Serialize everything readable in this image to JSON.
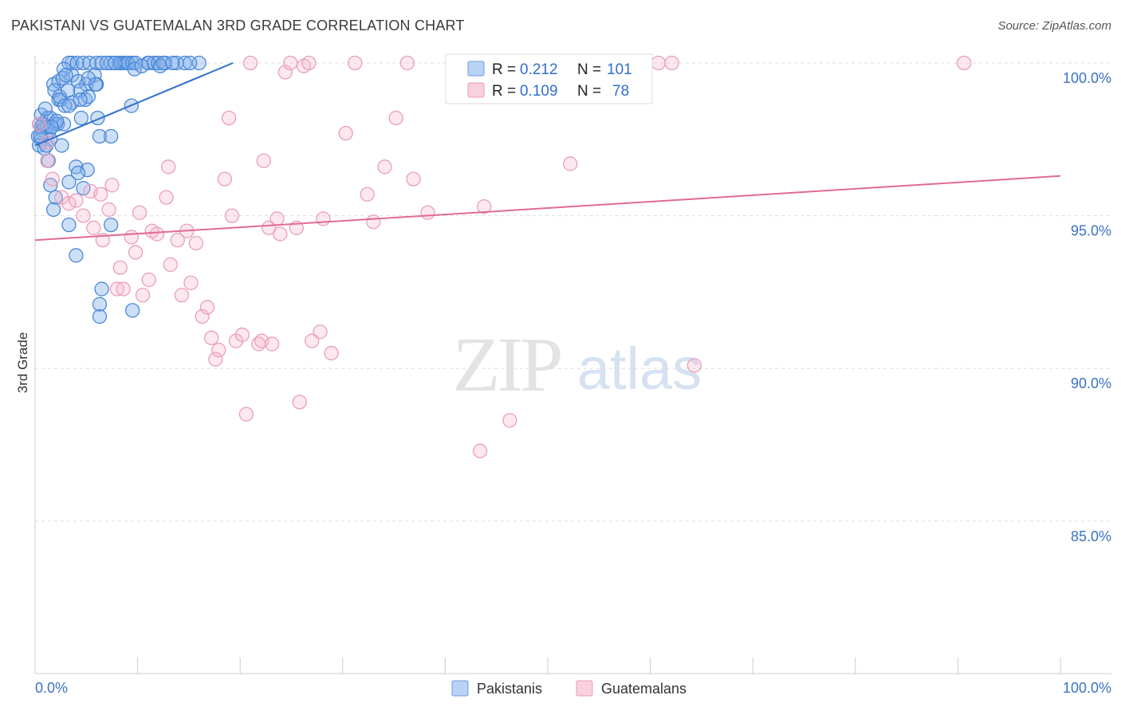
{
  "title": "PAKISTANI VS GUATEMALAN 3RD GRADE CORRELATION CHART",
  "source": "Source: ZipAtlas.com",
  "watermark": {
    "zip": "ZIP",
    "atlas": "atlas"
  },
  "legend_box": {
    "rows": [
      {
        "r_label": "R =",
        "r_value": "0.212",
        "n_label": "N =",
        "n_value": "101"
      },
      {
        "r_label": "R =",
        "r_value": "0.109",
        "n_label": "N =",
        "n_value": "78"
      }
    ]
  },
  "colors": {
    "blue": "#2f6fcf",
    "blue_fill": "#a9c9f2",
    "blue_stroke": "#4a88d8",
    "pink": "#e06b95",
    "pink_fill": "#f6c4d4",
    "pink_stroke": "#e8a0ba",
    "axis_text": "#3a72c4",
    "grid": "#dddddd"
  },
  "chart_data": {
    "type": "scatter",
    "title": "PAKISTANI VS GUATEMALAN 3RD GRADE CORRELATION CHART",
    "xlabel": "",
    "ylabel": "3rd Grade",
    "xlim": [
      0,
      100
    ],
    "ylim": [
      80.2,
      101.0
    ],
    "x_tick_labels": [
      "0.0%",
      "100.0%"
    ],
    "y_ticks": [
      {
        "value": 85,
        "label": "85.0%"
      },
      {
        "value": 90,
        "label": "90.0%"
      },
      {
        "value": 95,
        "label": "95.0%"
      },
      {
        "value": 100,
        "label": "100.0%"
      }
    ],
    "x_minor_ticks": [
      10,
      20,
      30,
      40,
      50,
      60,
      70,
      80,
      90,
      100
    ],
    "legend": [
      "Pakistanis",
      "Guatemalans"
    ],
    "series": [
      {
        "name": "Pakistanis",
        "color": "#4a88d8",
        "trend": {
          "x1": 0,
          "y1": 97.3,
          "x2": 19.3,
          "y2": 100.0
        },
        "points": [
          [
            3.6,
            100
          ],
          [
            3.3,
            100
          ],
          [
            4.1,
            100
          ],
          [
            4.7,
            100
          ],
          [
            5.3,
            100
          ],
          [
            6.0,
            100
          ],
          [
            6.5,
            100
          ],
          [
            7.4,
            100
          ],
          [
            8.2,
            100
          ],
          [
            8.4,
            100
          ],
          [
            8.4,
            100
          ],
          [
            8.7,
            100
          ],
          [
            8.9,
            100
          ],
          [
            9.1,
            100
          ],
          [
            9.5,
            100
          ],
          [
            9.8,
            100
          ],
          [
            11.0,
            100
          ],
          [
            11.1,
            100
          ],
          [
            11.6,
            100
          ],
          [
            12.0,
            100
          ],
          [
            12.7,
            100
          ],
          [
            16.0,
            100
          ],
          [
            9.7,
            99.8
          ],
          [
            3.6,
            99.6
          ],
          [
            5.8,
            99.6
          ],
          [
            1.8,
            99.3
          ],
          [
            2.3,
            99.4
          ],
          [
            4.2,
            99.4
          ],
          [
            5.0,
            99.3
          ],
          [
            1.9,
            99.1
          ],
          [
            4.4,
            99.1
          ],
          [
            2.3,
            98.8
          ],
          [
            2.5,
            98.8
          ],
          [
            2.4,
            98.9
          ],
          [
            3.6,
            98.7
          ],
          [
            4.9,
            98.8
          ],
          [
            5.2,
            98.9
          ],
          [
            2.9,
            98.6
          ],
          [
            3.3,
            98.6
          ],
          [
            9.4,
            98.6
          ],
          [
            0.6,
            98.3
          ],
          [
            1.2,
            98.2
          ],
          [
            1.5,
            98.2
          ],
          [
            2.0,
            98.0
          ],
          [
            2.2,
            98.0
          ],
          [
            4.5,
            98.2
          ],
          [
            6.1,
            98.2
          ],
          [
            0.4,
            98.0
          ],
          [
            0.6,
            97.9
          ],
          [
            0.7,
            97.8
          ],
          [
            1.0,
            97.9
          ],
          [
            1.2,
            97.9
          ],
          [
            1.4,
            97.8
          ],
          [
            2.8,
            98.0
          ],
          [
            0.3,
            97.6
          ],
          [
            0.6,
            97.5
          ],
          [
            1.5,
            97.5
          ],
          [
            6.3,
            97.6
          ],
          [
            7.4,
            97.6
          ],
          [
            0.4,
            97.3
          ],
          [
            0.9,
            97.2
          ],
          [
            2.6,
            97.3
          ],
          [
            1.3,
            96.8
          ],
          [
            4.0,
            96.6
          ],
          [
            5.1,
            96.5
          ],
          [
            4.2,
            96.4
          ],
          [
            3.3,
            96.1
          ],
          [
            1.5,
            96.0
          ],
          [
            4.7,
            95.9
          ],
          [
            2.0,
            95.6
          ],
          [
            1.8,
            95.2
          ],
          [
            3.3,
            94.7
          ],
          [
            7.4,
            94.7
          ],
          [
            4.0,
            93.7
          ],
          [
            6.5,
            92.6
          ],
          [
            6.3,
            92.1
          ],
          [
            6.3,
            91.7
          ],
          [
            9.5,
            91.9
          ],
          [
            13.8,
            100
          ],
          [
            14.6,
            100
          ],
          [
            15.1,
            100
          ],
          [
            12.2,
            99.9
          ],
          [
            7.0,
            100
          ],
          [
            6.0,
            99.3
          ],
          [
            2.8,
            99.8
          ],
          [
            3.2,
            99.1
          ],
          [
            1.0,
            98.5
          ],
          [
            2.1,
            98.1
          ],
          [
            0.8,
            98.0
          ],
          [
            1.6,
            97.9
          ],
          [
            5.9,
            99.3
          ],
          [
            7.8,
            100
          ],
          [
            10.4,
            99.9
          ],
          [
            12.5,
            100
          ],
          [
            13.4,
            100
          ],
          [
            4.4,
            98.8
          ],
          [
            2.7,
            99.5
          ],
          [
            1.1,
            97.3
          ],
          [
            0.5,
            97.6
          ],
          [
            5.2,
            99.5
          ],
          [
            3.0,
            99.6
          ]
        ]
      },
      {
        "name": "Guatemalans",
        "color": "#e8a0ba",
        "trend": {
          "x1": 0,
          "y1": 94.2,
          "x2": 100,
          "y2": 96.3
        },
        "points": [
          [
            0.4,
            98.0
          ],
          [
            1.2,
            97.4
          ],
          [
            1.2,
            96.8
          ],
          [
            1.7,
            96.2
          ],
          [
            2.6,
            95.6
          ],
          [
            3.3,
            95.4
          ],
          [
            4.0,
            95.5
          ],
          [
            4.7,
            95.0
          ],
          [
            5.4,
            95.8
          ],
          [
            5.7,
            94.6
          ],
          [
            6.4,
            95.7
          ],
          [
            6.6,
            94.2
          ],
          [
            7.2,
            95.2
          ],
          [
            7.5,
            96.0
          ],
          [
            8.0,
            92.6
          ],
          [
            8.3,
            93.3
          ],
          [
            8.6,
            92.6
          ],
          [
            9.4,
            94.3
          ],
          [
            9.8,
            93.8
          ],
          [
            10.2,
            95.1
          ],
          [
            10.5,
            92.4
          ],
          [
            11.1,
            92.9
          ],
          [
            11.4,
            94.5
          ],
          [
            11.9,
            94.4
          ],
          [
            12.8,
            95.6
          ],
          [
            13.0,
            96.6
          ],
          [
            13.2,
            93.4
          ],
          [
            13.9,
            94.2
          ],
          [
            14.3,
            92.4
          ],
          [
            14.8,
            94.5
          ],
          [
            15.2,
            92.8
          ],
          [
            15.7,
            94.1
          ],
          [
            16.3,
            91.7
          ],
          [
            16.8,
            92.0
          ],
          [
            17.2,
            91.0
          ],
          [
            17.6,
            90.3
          ],
          [
            17.9,
            90.6
          ],
          [
            18.5,
            96.2
          ],
          [
            18.9,
            98.2
          ],
          [
            19.2,
            95.0
          ],
          [
            19.6,
            90.9
          ],
          [
            20.2,
            91.1
          ],
          [
            20.6,
            88.5
          ],
          [
            21.0,
            100
          ],
          [
            21.8,
            90.8
          ],
          [
            22.1,
            90.9
          ],
          [
            22.3,
            96.8
          ],
          [
            22.8,
            94.6
          ],
          [
            23.1,
            90.8
          ],
          [
            23.6,
            94.9
          ],
          [
            23.9,
            94.4
          ],
          [
            24.4,
            99.7
          ],
          [
            24.9,
            100
          ],
          [
            25.5,
            94.6
          ],
          [
            25.8,
            88.9
          ],
          [
            26.2,
            99.9
          ],
          [
            26.7,
            100
          ],
          [
            27.0,
            90.9
          ],
          [
            27.8,
            91.2
          ],
          [
            28.1,
            94.9
          ],
          [
            28.9,
            90.5
          ],
          [
            30.3,
            97.7
          ],
          [
            31.2,
            100
          ],
          [
            32.4,
            95.7
          ],
          [
            33.0,
            94.8
          ],
          [
            34.1,
            96.6
          ],
          [
            35.2,
            98.2
          ],
          [
            36.3,
            100
          ],
          [
            36.9,
            96.2
          ],
          [
            38.3,
            95.1
          ],
          [
            43.4,
            87.3
          ],
          [
            43.8,
            95.3
          ],
          [
            46.3,
            88.3
          ],
          [
            52.2,
            96.7
          ],
          [
            60.8,
            100
          ],
          [
            62.1,
            100
          ],
          [
            64.3,
            90.1
          ],
          [
            90.6,
            100
          ]
        ]
      }
    ]
  }
}
